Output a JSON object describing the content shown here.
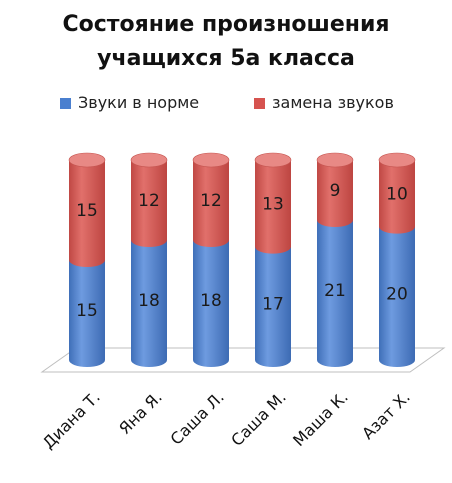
{
  "chart_data": {
    "type": "bar",
    "stacked": true,
    "title_line1": "Состояние произношения",
    "title_line2": "учащихся 5а класса",
    "categories": [
      "Диана Т.",
      "Яна Я.",
      "Саша Л.",
      "Саша М.",
      "Маша К.",
      "Азат Х."
    ],
    "series": [
      {
        "name": "Звуки в норме",
        "values": [
          15,
          18,
          18,
          17,
          21,
          20
        ],
        "color": "#4a7fcf"
      },
      {
        "name": "замена звуков",
        "values": [
          15,
          12,
          12,
          13,
          9,
          10
        ],
        "color": "#d6534f"
      }
    ],
    "ylim": [
      0,
      30
    ],
    "legend": "top",
    "grid": false
  }
}
